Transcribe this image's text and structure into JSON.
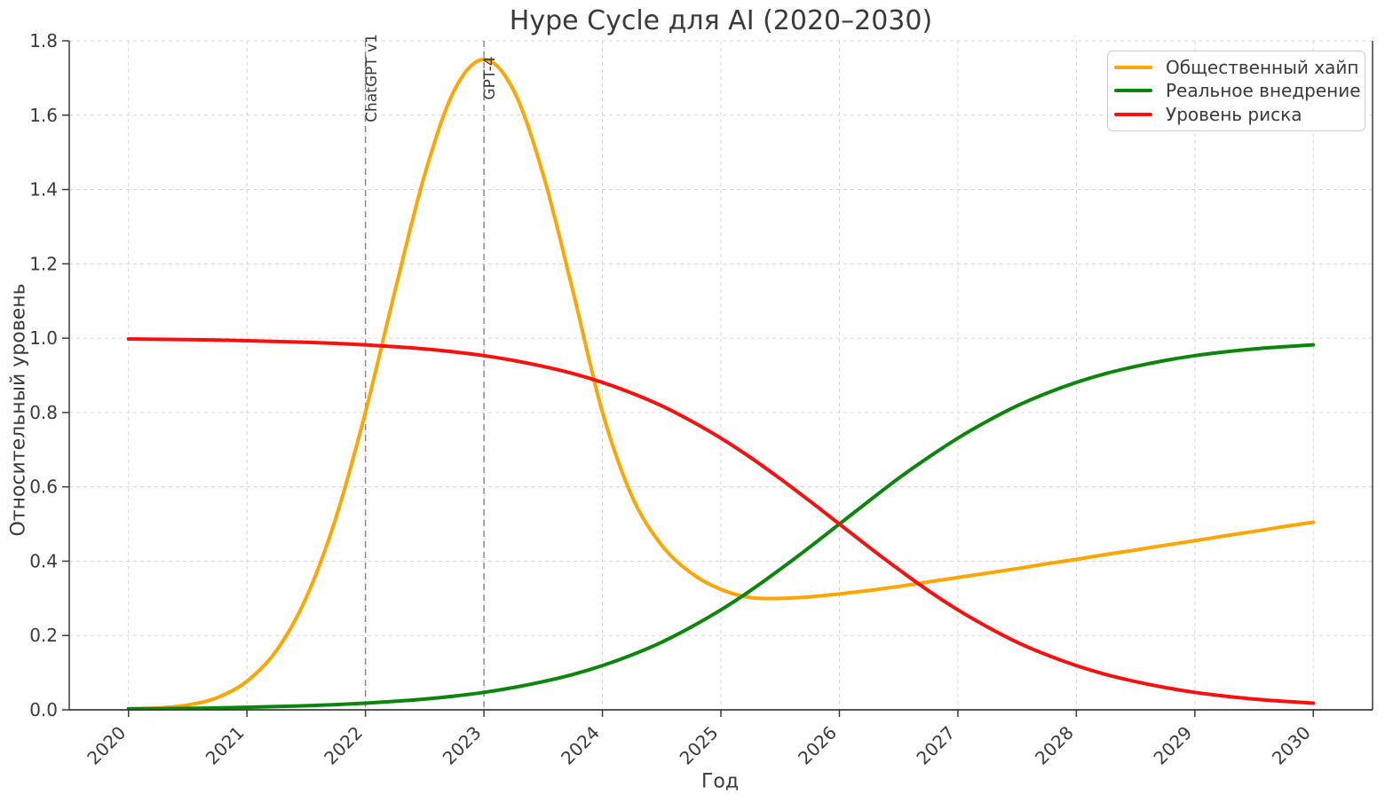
{
  "chart_data": {
    "type": "line",
    "title": "Hype Cycle для AI (2020–2030)",
    "xlabel": "Год",
    "ylabel": "Относительный уровень",
    "xlim": [
      2019.5,
      2030.5
    ],
    "ylim": [
      0,
      1.8
    ],
    "grid": true,
    "legend_position": "upper right",
    "x_tick_labels": [
      "2020",
      "2021",
      "2022",
      "2023",
      "2024",
      "2025",
      "2026",
      "2027",
      "2028",
      "2029",
      "2030"
    ],
    "y_tick_labels": [
      "0.0",
      "0.2",
      "0.4",
      "0.6",
      "0.8",
      "1.0",
      "1.2",
      "1.4",
      "1.6",
      "1.8"
    ],
    "x": [
      2020,
      2020.25,
      2020.5,
      2020.75,
      2021,
      2021.25,
      2021.5,
      2021.75,
      2022,
      2022.25,
      2022.5,
      2022.75,
      2023,
      2023.25,
      2023.5,
      2023.75,
      2024,
      2024.25,
      2024.5,
      2024.75,
      2025,
      2025.25,
      2025.5,
      2025.75,
      2026,
      2026.25,
      2026.5,
      2026.75,
      2027,
      2027.25,
      2027.5,
      2027.75,
      2028,
      2028.25,
      2028.5,
      2028.75,
      2029,
      2029.25,
      2029.5,
      2029.75,
      2030
    ],
    "series": [
      {
        "name": "Общественный хайп",
        "color": "#FFA500",
        "values": [
          0.002,
          0.005,
          0.013,
          0.033,
          0.077,
          0.16,
          0.302,
          0.516,
          0.801,
          1.128,
          1.44,
          1.667,
          1.75,
          1.667,
          1.44,
          1.128,
          0.801,
          0.574,
          0.443,
          0.368,
          0.324,
          0.302,
          0.3,
          0.304,
          0.312,
          0.321,
          0.332,
          0.344,
          0.356,
          0.368,
          0.38,
          0.393,
          0.405,
          0.418,
          0.43,
          0.443,
          0.455,
          0.468,
          0.48,
          0.493,
          0.505
        ]
      },
      {
        "name": "Реальное внедрение",
        "color": "#0B860B",
        "values": [
          0.003,
          0.003,
          0.004,
          0.005,
          0.007,
          0.009,
          0.011,
          0.014,
          0.018,
          0.023,
          0.029,
          0.037,
          0.047,
          0.06,
          0.076,
          0.095,
          0.119,
          0.148,
          0.182,
          0.223,
          0.269,
          0.321,
          0.378,
          0.438,
          0.5,
          0.562,
          0.623,
          0.679,
          0.731,
          0.777,
          0.818,
          0.852,
          0.881,
          0.905,
          0.924,
          0.94,
          0.953,
          0.963,
          0.971,
          0.977,
          0.982
        ]
      },
      {
        "name": "Уровень риска",
        "color": "#FA0F0F",
        "values": [
          0.998,
          0.997,
          0.996,
          0.995,
          0.993,
          0.991,
          0.989,
          0.986,
          0.982,
          0.977,
          0.971,
          0.963,
          0.953,
          0.94,
          0.924,
          0.905,
          0.881,
          0.852,
          0.818,
          0.777,
          0.731,
          0.679,
          0.622,
          0.562,
          0.5,
          0.438,
          0.378,
          0.321,
          0.269,
          0.223,
          0.182,
          0.148,
          0.119,
          0.095,
          0.076,
          0.06,
          0.047,
          0.037,
          0.029,
          0.023,
          0.018
        ]
      }
    ],
    "annotations": [
      {
        "label": "ChatGPT v1",
        "x": 2022
      },
      {
        "label": "GPT-4",
        "x": 2023
      }
    ]
  }
}
